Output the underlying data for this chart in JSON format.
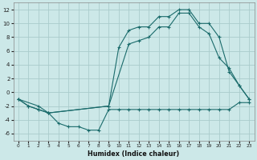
{
  "xlabel": "Humidex (Indice chaleur)",
  "bg_color": "#cce8e8",
  "grid_color": "#aacccc",
  "line_color": "#1a6b6b",
  "xlim": [
    -0.5,
    23.5
  ],
  "ylim": [
    -7,
    13
  ],
  "yticks": [
    -6,
    -4,
    -2,
    0,
    2,
    4,
    6,
    8,
    10,
    12
  ],
  "xticks": [
    0,
    1,
    2,
    3,
    4,
    5,
    6,
    7,
    8,
    9,
    10,
    11,
    12,
    13,
    14,
    15,
    16,
    17,
    18,
    19,
    20,
    21,
    22,
    23
  ],
  "curve1_x": [
    0,
    1,
    2,
    3,
    4,
    5,
    6,
    7,
    8,
    9,
    10,
    11,
    12,
    13,
    14,
    15,
    16,
    17,
    18,
    19,
    20,
    21,
    22,
    23
  ],
  "curve1_y": [
    -1,
    -2,
    -2.5,
    -3,
    -4.5,
    -5,
    -5,
    -5.5,
    -5.5,
    -2.5,
    -2.5,
    -2.5,
    -2.5,
    -2.5,
    -2.5,
    -2.5,
    -2.5,
    -2.5,
    -2.5,
    -2.5,
    -2.5,
    -2.5,
    -1.5,
    -1.5
  ],
  "curve2_x": [
    0,
    1,
    2,
    3,
    9,
    10,
    11,
    12,
    13,
    14,
    15,
    16,
    17,
    18,
    19,
    20,
    21,
    22,
    23
  ],
  "curve2_y": [
    -1,
    -2,
    -2.5,
    -3,
    -2,
    6.5,
    9,
    9.5,
    9.5,
    11,
    11,
    12,
    12,
    10,
    10,
    8,
    3,
    1,
    -1
  ],
  "curve3_x": [
    0,
    2,
    3,
    9,
    11,
    12,
    13,
    14,
    15,
    16,
    17,
    18,
    19,
    20,
    21,
    22,
    23
  ],
  "curve3_y": [
    -1,
    -2,
    -3,
    -2,
    7,
    7.5,
    8,
    9.5,
    9.5,
    11.5,
    11.5,
    9.5,
    8.5,
    5,
    3.5,
    1,
    -1
  ]
}
